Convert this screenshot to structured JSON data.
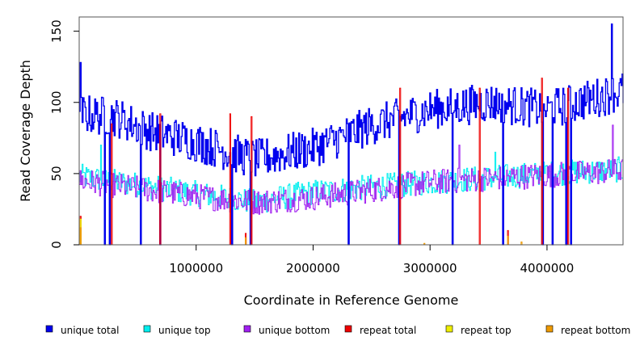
{
  "chart_data": {
    "type": "line",
    "title": "",
    "xlabel": "Coordinate in Reference Genome",
    "ylabel": "Read Coverage Depth",
    "xlim": [
      0,
      4650000
    ],
    "ylim": [
      0,
      160
    ],
    "x_ticks": [
      1000000,
      2000000,
      3000000,
      4000000
    ],
    "x_tick_labels": [
      "1000000",
      "2000000",
      "3000000",
      "4000000"
    ],
    "y_ticks": [
      0,
      50,
      100,
      150
    ],
    "y_tick_labels": [
      "0",
      "50",
      "100",
      "150"
    ],
    "legend_position": "bottom",
    "series": [
      {
        "name": "unique total",
        "color": "#0000ee",
        "baseline": [
          [
            0,
            92
          ],
          [
            300000,
            90
          ],
          [
            600000,
            80
          ],
          [
            1000000,
            72
          ],
          [
            1500000,
            60
          ],
          [
            2000000,
            68
          ],
          [
            2500000,
            84
          ],
          [
            3000000,
            95
          ],
          [
            3500000,
            100
          ],
          [
            4000000,
            95
          ],
          [
            4650000,
            108
          ]
        ],
        "amplitude": 14,
        "spikes": [
          [
            10000,
            128
          ],
          [
            4550000,
            155
          ]
        ],
        "dips": [
          [
            220000,
            0
          ],
          [
            260000,
            0
          ],
          [
            520000,
            0
          ],
          [
            690000,
            0
          ],
          [
            1300000,
            0
          ],
          [
            1460000,
            0
          ],
          [
            2300000,
            0
          ],
          [
            2730000,
            0
          ],
          [
            3190000,
            0
          ],
          [
            3620000,
            0
          ],
          [
            3960000,
            0
          ],
          [
            4040000,
            0
          ],
          [
            4160000,
            0
          ],
          [
            4200000,
            0
          ]
        ]
      },
      {
        "name": "unique top",
        "color": "#00eeee",
        "baseline": [
          [
            0,
            48
          ],
          [
            1000000,
            36
          ],
          [
            1500000,
            30
          ],
          [
            2000000,
            37
          ],
          [
            3000000,
            44
          ],
          [
            4000000,
            50
          ],
          [
            4650000,
            53
          ]
        ],
        "amplitude": 9,
        "spikes": [
          [
            180000,
            70
          ],
          [
            3550000,
            65
          ]
        ],
        "dips": [
          [
            220000,
            0
          ],
          [
            260000,
            0
          ],
          [
            520000,
            0
          ],
          [
            690000,
            0
          ],
          [
            1300000,
            0
          ],
          [
            1460000,
            0
          ],
          [
            2300000,
            0
          ],
          [
            2730000,
            0
          ],
          [
            3190000,
            0
          ],
          [
            3620000,
            0
          ],
          [
            3960000,
            0
          ],
          [
            4040000,
            0
          ],
          [
            4160000,
            0
          ],
          [
            4200000,
            0
          ]
        ]
      },
      {
        "name": "unique bottom",
        "color": "#a020f0",
        "baseline": [
          [
            0,
            45
          ],
          [
            1000000,
            34
          ],
          [
            1500000,
            30
          ],
          [
            2000000,
            33
          ],
          [
            3000000,
            44
          ],
          [
            4000000,
            49
          ],
          [
            4650000,
            52
          ]
        ],
        "amplitude": 9,
        "spikes": [
          [
            4560000,
            84
          ],
          [
            3250000,
            70
          ]
        ],
        "dips": [
          [
            220000,
            0
          ],
          [
            260000,
            0
          ],
          [
            520000,
            0
          ],
          [
            690000,
            0
          ],
          [
            1300000,
            0
          ],
          [
            1460000,
            0
          ],
          [
            2300000,
            0
          ],
          [
            2730000,
            0
          ],
          [
            3190000,
            0
          ],
          [
            3620000,
            0
          ],
          [
            3960000,
            0
          ],
          [
            4040000,
            0
          ],
          [
            4160000,
            0
          ],
          [
            4200000,
            0
          ]
        ]
      },
      {
        "name": "repeat total",
        "color": "#ee0000",
        "baseline": [
          [
            0,
            0
          ],
          [
            4650000,
            0
          ]
        ],
        "amplitude": 0,
        "spikes": [
          [
            10000,
            20
          ],
          [
            270000,
            85
          ],
          [
            690000,
            92
          ],
          [
            1290000,
            92
          ],
          [
            1420000,
            8
          ],
          [
            1470000,
            90
          ],
          [
            2740000,
            110
          ],
          [
            3420000,
            110
          ],
          [
            3660000,
            10
          ],
          [
            3950000,
            117
          ],
          [
            4180000,
            110
          ]
        ],
        "dips": []
      },
      {
        "name": "repeat top",
        "color": "#eeee00",
        "baseline": [
          [
            0,
            0
          ],
          [
            4650000,
            0
          ]
        ],
        "amplitude": 0,
        "spikes": [
          [
            10000,
            18
          ]
        ],
        "dips": []
      },
      {
        "name": "repeat bottom",
        "color": "#ee9a00",
        "baseline": [
          [
            0,
            0
          ],
          [
            4650000,
            0
          ]
        ],
        "amplitude": 0,
        "spikes": [
          [
            10000,
            12
          ],
          [
            1420000,
            5
          ],
          [
            2950000,
            1
          ],
          [
            3660000,
            6
          ],
          [
            3780000,
            2
          ]
        ],
        "dips": []
      }
    ]
  }
}
